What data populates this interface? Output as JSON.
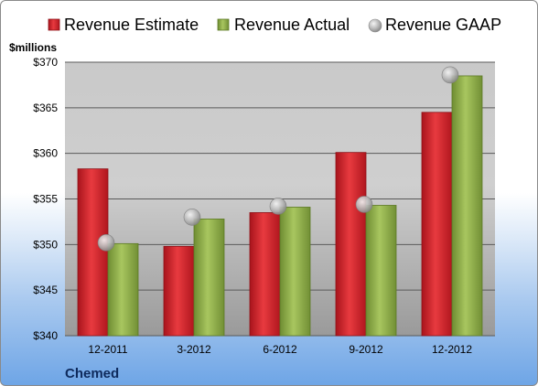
{
  "chart_data": {
    "type": "bar",
    "company": "Chemed",
    "ylabel": "$millions",
    "categories": [
      "12-2011",
      "3-2012",
      "6-2012",
      "9-2012",
      "12-2012"
    ],
    "series": [
      {
        "name": "Revenue Estimate",
        "kind": "bar",
        "color": "#d0202a",
        "values": [
          358.3,
          349.8,
          353.5,
          360.1,
          364.5
        ]
      },
      {
        "name": "Revenue Actual",
        "kind": "bar",
        "color": "#8fb04a",
        "values": [
          350.1,
          352.8,
          354.1,
          354.3,
          368.5
        ]
      },
      {
        "name": "Revenue GAAP",
        "kind": "marker",
        "color": "#b8b8b8",
        "values": [
          350.2,
          353.0,
          354.2,
          354.4,
          368.6
        ]
      }
    ],
    "ylim": [
      340,
      370
    ],
    "yticks": [
      340,
      345,
      350,
      355,
      360,
      365,
      370
    ],
    "ytick_labels": [
      "$340",
      "$345",
      "$350",
      "$355",
      "$360",
      "$365",
      "$370"
    ],
    "grid": true,
    "legend_position": "top"
  }
}
